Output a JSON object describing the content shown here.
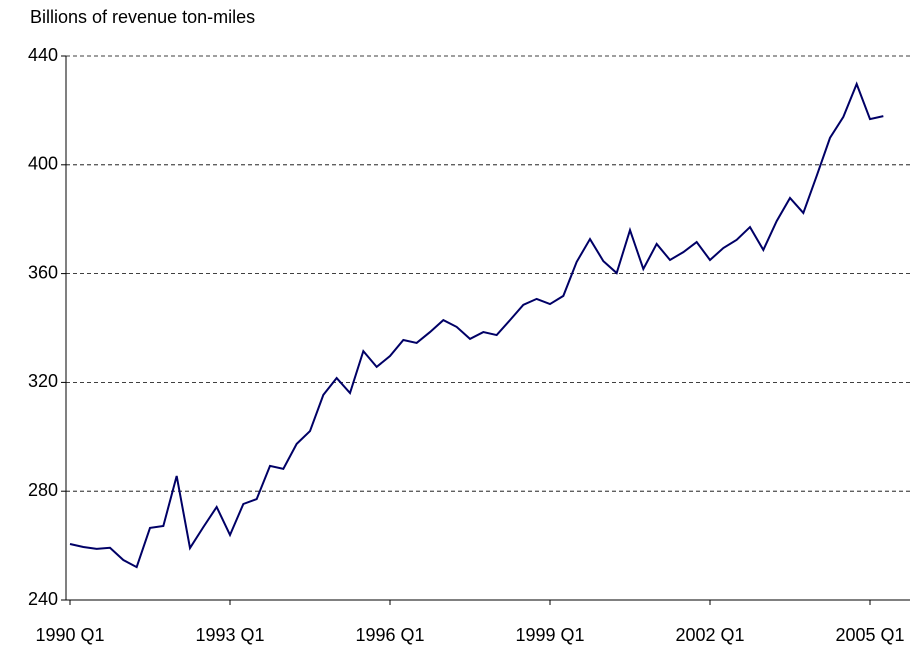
{
  "chart_data": {
    "type": "line",
    "y_axis_label": "Billions of revenue ton-miles",
    "categories": [
      "1990 Q1",
      null,
      null,
      null,
      null,
      null,
      null,
      null,
      null,
      null,
      null,
      null,
      "1993 Q1",
      null,
      null,
      null,
      null,
      null,
      null,
      null,
      null,
      null,
      null,
      null,
      "1996 Q1",
      null,
      null,
      null,
      null,
      null,
      null,
      null,
      null,
      null,
      null,
      null,
      "1999 Q1",
      null,
      null,
      null,
      null,
      null,
      null,
      null,
      null,
      null,
      null,
      null,
      "2002 Q1",
      null,
      null,
      null,
      null,
      null,
      null,
      null,
      null,
      null,
      null,
      null,
      "2005 Q1",
      null
    ],
    "series": [
      {
        "color": "#000066",
        "values": [
          260.6,
          259.5,
          258.8,
          259.2,
          254.7,
          252.1,
          266.5,
          267.2,
          285.6,
          259.1,
          266.8,
          274.2,
          263.9,
          275.3,
          277.1,
          289.3,
          288.2,
          297.4,
          302.1,
          315.4,
          321.6,
          316.1,
          331.5,
          325.7,
          329.7,
          335.6,
          334.5,
          338.5,
          342.9,
          340.4,
          336.0,
          338.5,
          337.4,
          342.9,
          348.5,
          350.7,
          348.8,
          351.8,
          364.3,
          372.7,
          364.6,
          360.2,
          376.0,
          361.7,
          370.9,
          365.0,
          367.9,
          371.6,
          365.0,
          369.4,
          372.4,
          377.1,
          368.7,
          379.3,
          387.8,
          382.3,
          395.9,
          409.9,
          417.6,
          429.7,
          416.8,
          417.9
        ]
      }
    ],
    "ylim": [
      240,
      440
    ],
    "yticks": [
      240,
      280,
      320,
      360,
      400,
      440
    ],
    "grid": true
  }
}
